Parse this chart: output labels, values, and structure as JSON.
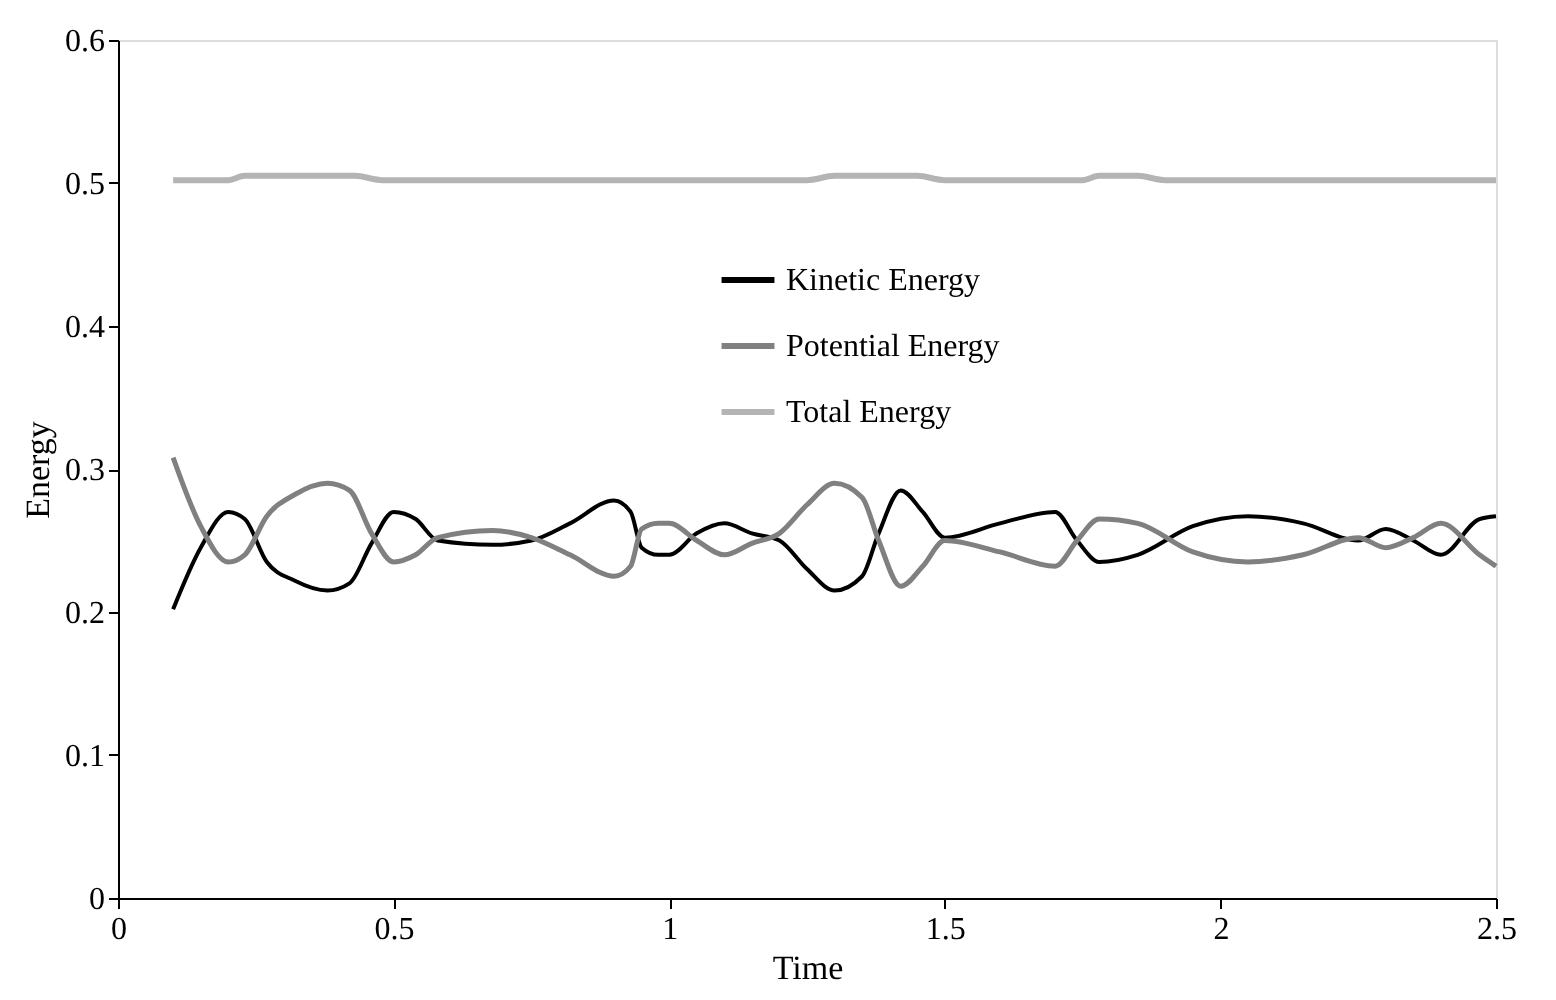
{
  "chart_data": {
    "type": "line",
    "xlabel": "Time",
    "ylabel": "Energy",
    "xlim": [
      0,
      2.5
    ],
    "xticks": [
      0,
      0.5,
      1,
      1.5,
      2,
      2.5
    ],
    "ylim": [
      0,
      0.6
    ],
    "yticks": [
      0,
      0.1,
      0.2,
      0.3,
      0.4,
      0.5,
      0.6
    ],
    "grid": false,
    "legend": "top right",
    "marker": "none",
    "line_style": "solid",
    "series": [
      {
        "name": "Kinetic Energy",
        "color": "#000000",
        "x": [
          0.1,
          0.15,
          0.2,
          0.23,
          0.27,
          0.32,
          0.38,
          0.42,
          0.46,
          0.5,
          0.54,
          0.58,
          0.68,
          0.75,
          0.82,
          0.9,
          0.93,
          0.95,
          0.98,
          1.0,
          1.05,
          1.1,
          1.15,
          1.2,
          1.25,
          1.3,
          1.35,
          1.38,
          1.42,
          1.46,
          1.5,
          1.6,
          1.7,
          1.74,
          1.78,
          1.85,
          1.95,
          2.05,
          2.15,
          2.25,
          2.3,
          2.35,
          2.4,
          2.47,
          2.5
        ],
        "values": [
          0.202,
          0.245,
          0.27,
          0.265,
          0.235,
          0.222,
          0.215,
          0.22,
          0.248,
          0.27,
          0.265,
          0.25,
          0.247,
          0.25,
          0.262,
          0.278,
          0.27,
          0.245,
          0.24,
          0.24,
          0.255,
          0.262,
          0.255,
          0.25,
          0.23,
          0.215,
          0.225,
          0.255,
          0.285,
          0.27,
          0.252,
          0.262,
          0.27,
          0.25,
          0.235,
          0.24,
          0.26,
          0.267,
          0.262,
          0.25,
          0.258,
          0.25,
          0.24,
          0.265,
          0.267
        ]
      },
      {
        "name": "Potential Energy",
        "color": "#808080",
        "x": [
          0.1,
          0.15,
          0.2,
          0.23,
          0.27,
          0.32,
          0.38,
          0.42,
          0.46,
          0.5,
          0.54,
          0.58,
          0.68,
          0.75,
          0.82,
          0.9,
          0.93,
          0.95,
          0.98,
          1.0,
          1.05,
          1.1,
          1.15,
          1.2,
          1.25,
          1.3,
          1.35,
          1.38,
          1.42,
          1.46,
          1.5,
          1.6,
          1.7,
          1.74,
          1.78,
          1.85,
          1.95,
          2.05,
          2.15,
          2.25,
          2.3,
          2.35,
          2.4,
          2.47,
          2.5
        ],
        "values": [
          0.308,
          0.26,
          0.235,
          0.24,
          0.267,
          0.282,
          0.29,
          0.285,
          0.255,
          0.235,
          0.24,
          0.252,
          0.257,
          0.252,
          0.24,
          0.225,
          0.232,
          0.258,
          0.262,
          0.262,
          0.25,
          0.24,
          0.248,
          0.255,
          0.275,
          0.29,
          0.28,
          0.25,
          0.218,
          0.232,
          0.25,
          0.242,
          0.232,
          0.25,
          0.265,
          0.262,
          0.242,
          0.235,
          0.24,
          0.252,
          0.245,
          0.252,
          0.262,
          0.24,
          0.232
        ]
      },
      {
        "name": "Total Energy",
        "color": "#b4b4b4",
        "x": [
          0.1,
          0.2,
          0.23,
          0.43,
          0.48,
          1.25,
          1.3,
          1.45,
          1.5,
          1.75,
          1.78,
          1.85,
          1.9,
          2.5
        ],
        "values": [
          0.502,
          0.502,
          0.505,
          0.505,
          0.502,
          0.502,
          0.505,
          0.505,
          0.502,
          0.502,
          0.505,
          0.505,
          0.502,
          0.502
        ]
      }
    ]
  }
}
